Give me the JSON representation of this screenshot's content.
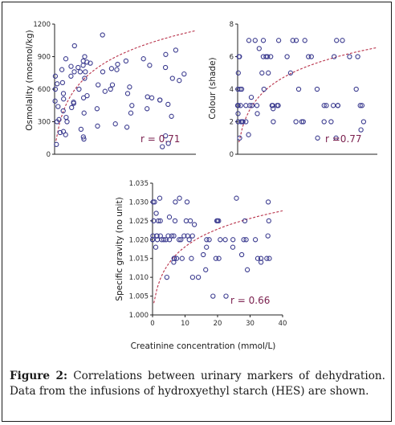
{
  "caption": {
    "label": "Figure 2:",
    "text": "Correlations between urinary markers of dehydration. Data from the infusions of hydroxyethyl starch (HES) are shown."
  },
  "shared_xlabel": "Creatinine concentration (mmol/L)",
  "colors": {
    "marker": "#3b3b8f",
    "fit": "#b8324a",
    "r_text": "#7a1f4d"
  },
  "chart_data": [
    {
      "type": "scatter",
      "ylabel": "Osmolality (mosmol/kg)",
      "ylim": [
        0,
        1200
      ],
      "yticks": [
        "0",
        "300",
        "600",
        "900",
        "1200"
      ],
      "correlation": "r = 0.71",
      "trendline": "dashed logarithmic",
      "points_y": [
        70,
        100,
        90,
        140,
        170,
        200,
        230,
        260,
        280,
        300,
        320,
        350,
        380,
        400,
        420,
        430,
        440,
        450,
        470,
        480,
        490,
        500,
        510,
        520,
        540,
        560,
        580,
        600,
        620,
        640,
        650,
        660,
        700,
        720,
        740,
        760,
        780,
        790,
        800,
        810,
        820,
        840,
        860,
        880,
        900,
        160,
        180,
        210,
        250,
        300,
        340,
        380,
        420,
        460,
        500,
        530,
        560,
        600,
        640,
        680,
        720,
        760,
        780,
        800,
        830,
        860,
        880,
        920,
        960,
        1000,
        1100,
        520,
        600,
        700,
        760,
        820,
        760,
        850
      ]
    },
    {
      "type": "scatter",
      "ylabel": "Colour (shade)",
      "ylim": [
        0,
        8
      ],
      "yticks": [
        "0",
        "2",
        "4",
        "6",
        "8"
      ],
      "correlation": "r =0.77",
      "trendline": "dashed logarithmic",
      "points_y": [
        1,
        1,
        1,
        1.2,
        1.5,
        2,
        2,
        2,
        2,
        2,
        2,
        2,
        2,
        2,
        2,
        3,
        3,
        3,
        3,
        3,
        3,
        3,
        3,
        3,
        3,
        3,
        3,
        3.5,
        4,
        4,
        4,
        4,
        5,
        5,
        5,
        6,
        6,
        6,
        6,
        6,
        6,
        6,
        7,
        7,
        7,
        7,
        7,
        2.5,
        2.5,
        3,
        3,
        4,
        2,
        3,
        3,
        6,
        6,
        6.5,
        7,
        3,
        3,
        4,
        6,
        7,
        7,
        2,
        3,
        4,
        5,
        6,
        6,
        7,
        2.8
      ]
    },
    {
      "type": "scatter",
      "ylabel": "Specific gravity (no unit)",
      "xlabel": "Creatinine concentration (mmol/L)",
      "xlim": [
        0,
        40
      ],
      "xticks": [
        "0",
        "10",
        "20",
        "30",
        "40"
      ],
      "ylim": [
        1.0,
        1.035
      ],
      "yticks": [
        "1.000",
        "1.005",
        "1.010",
        "1.015",
        "1.020",
        "1.025",
        "1.030",
        "1.035"
      ],
      "correlation": "r = 0.66",
      "trendline": "dashed logarithmic",
      "points_y": [
        1.005,
        1.005,
        1.012,
        1.015,
        1.015,
        1.016,
        1.018,
        1.02,
        1.021,
        1.015,
        1.01,
        1.012,
        1.015,
        1.02,
        1.02,
        1.025,
        1.031,
        1.016,
        1.015,
        1.02,
        1.021,
        1.015,
        1.014,
        1.02,
        1.018,
        1.02,
        1.021,
        1.025,
        1.02,
        1.01,
        1.015,
        1.02,
        1.021,
        1.015,
        1.014,
        1.02,
        1.018,
        1.021,
        1.025,
        1.02,
        1.02,
        1.01,
        1.015,
        1.02,
        1.021,
        1.026,
        1.015,
        1.02,
        1.024,
        1.03,
        1.027,
        1.021,
        1.02,
        1.025,
        1.03,
        1.021,
        1.021,
        1.02,
        1.015,
        1.02,
        1.021,
        1.025,
        1.025,
        1.03,
        1.031,
        1.021,
        1.025,
        1.03,
        1.025,
        1.031,
        1.03,
        1.025,
        1.02,
        1.02,
        1.025,
        1.025
      ]
    }
  ]
}
